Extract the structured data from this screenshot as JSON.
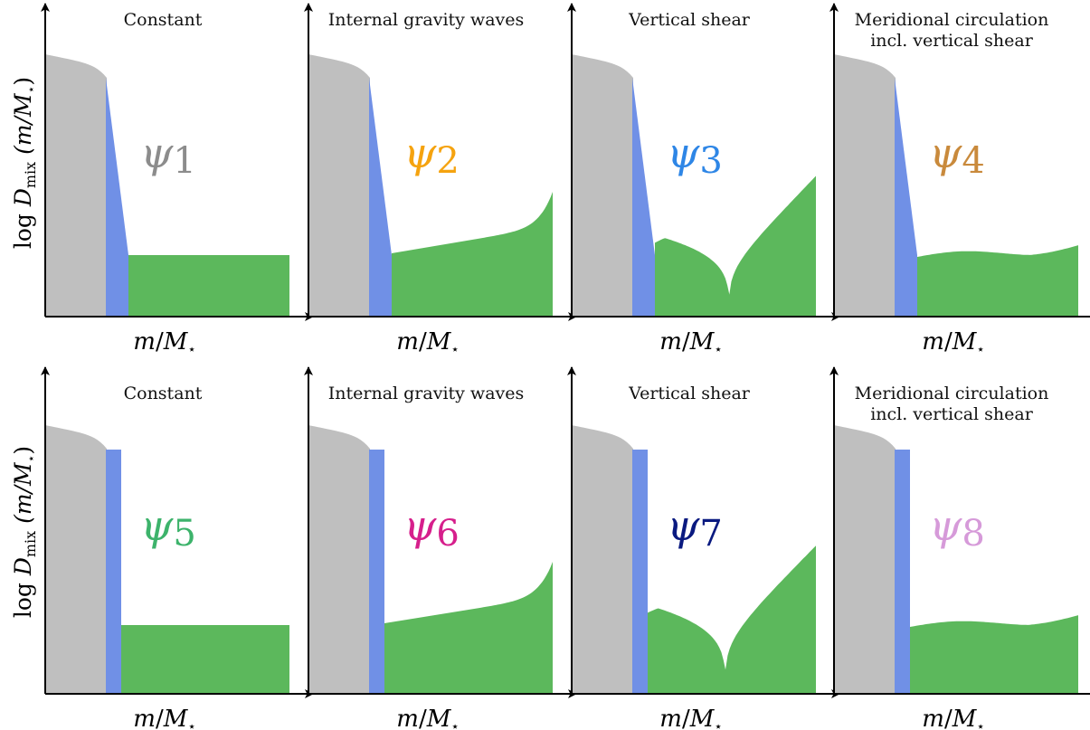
{
  "y_axis_label": "log D_mix (m/M⋆)",
  "y_axis_label_parts": {
    "log": "log ",
    "D": "D",
    "sub": "mix",
    "arg": " (m/M",
    "star": "⋆",
    "close": ")"
  },
  "x_axis_label_parts": {
    "m": "m",
    "slash": "/",
    "M": "M",
    "star": "⋆"
  },
  "colors": {
    "core": "#bfbfbf",
    "overshoot": "#7090e6",
    "envelope": "#5cb85c",
    "axis": "#000000"
  },
  "rows": [
    {
      "overshoot_shape": "sloped",
      "panels": [
        {
          "title_lines": [
            "Constant"
          ],
          "profile": "constant",
          "psi": "ψ",
          "index": "1",
          "psi_color": "#8c8c8c"
        },
        {
          "title_lines": [
            "Internal gravity waves"
          ],
          "profile": "gravity-waves",
          "psi": "ψ",
          "index": "2",
          "psi_color": "#f5a30f"
        },
        {
          "title_lines": [
            "Vertical shear"
          ],
          "profile": "vertical-shear",
          "psi": "ψ",
          "index": "3",
          "psi_color": "#2e86e6"
        },
        {
          "title_lines": [
            "Meridional circulation",
            "incl. vertical shear"
          ],
          "profile": "meridional",
          "psi": "ψ",
          "index": "4",
          "psi_color": "#c98a3c"
        }
      ]
    },
    {
      "overshoot_shape": "flat",
      "panels": [
        {
          "title_lines": [
            "Constant"
          ],
          "profile": "constant",
          "psi": "ψ",
          "index": "5",
          "psi_color": "#3db36b"
        },
        {
          "title_lines": [
            "Internal gravity waves"
          ],
          "profile": "gravity-waves",
          "psi": "ψ",
          "index": "6",
          "psi_color": "#d61f8c"
        },
        {
          "title_lines": [
            "Vertical shear"
          ],
          "profile": "vertical-shear",
          "psi": "ψ",
          "index": "7",
          "psi_color": "#0a1a80"
        },
        {
          "title_lines": [
            "Meridional circulation",
            "incl. vertical shear"
          ],
          "profile": "meridional",
          "psi": "ψ",
          "index": "8",
          "psi_color": "#d69ad9"
        }
      ]
    }
  ]
}
